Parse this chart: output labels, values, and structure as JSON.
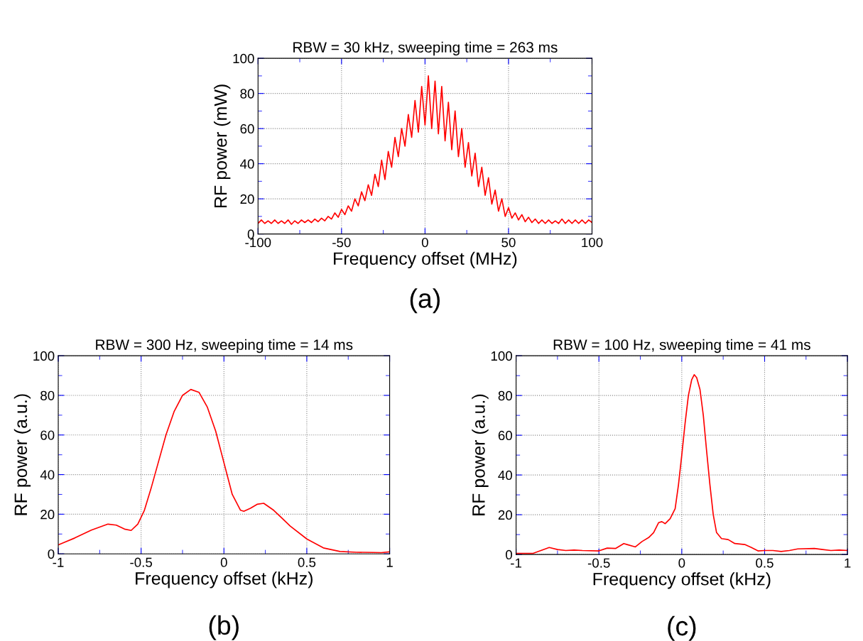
{
  "chart_data": [
    {
      "type": "line",
      "title": "RBW = 30 kHz, sweeping time = 263 ms",
      "xlabel": "Frequency offset (MHz)",
      "ylabel": "RF power (mW)",
      "annotations": [
        "(a)"
      ],
      "x": [
        -100,
        -98,
        -96,
        -94,
        -92,
        -90,
        -88,
        -86,
        -84,
        -82,
        -80,
        -78,
        -76,
        -74,
        -72,
        -70,
        -68,
        -66,
        -64,
        -62,
        -60,
        -58,
        -56,
        -54,
        -52,
        -50,
        -48,
        -46,
        -44,
        -42,
        -40,
        -38,
        -36,
        -34,
        -32,
        -30,
        -28,
        -26,
        -24,
        -22,
        -20,
        -18,
        -16,
        -14,
        -12,
        -10,
        -8,
        -6,
        -4,
        -2,
        0,
        2,
        4,
        6,
        8,
        10,
        12,
        14,
        16,
        18,
        20,
        22,
        24,
        26,
        28,
        30,
        32,
        34,
        36,
        38,
        40,
        42,
        44,
        46,
        48,
        50,
        52,
        54,
        56,
        58,
        60,
        62,
        64,
        66,
        68,
        70,
        72,
        74,
        76,
        78,
        80,
        82,
        84,
        86,
        88,
        90,
        92,
        94,
        96,
        98,
        100
      ],
      "series": [
        {
          "color": "#ff0000",
          "values": [
            6,
            8,
            6,
            7.5,
            6,
            8,
            6,
            7.5,
            6,
            8,
            5.5,
            7.5,
            6,
            8,
            6.5,
            8,
            6.5,
            8.5,
            7,
            9,
            7.5,
            10,
            8.5,
            12,
            9.5,
            14,
            11,
            16,
            13,
            20,
            16,
            24,
            19,
            28,
            22,
            34,
            27,
            42,
            31,
            47,
            38,
            55,
            44,
            60,
            50,
            68,
            55,
            76,
            58,
            84,
            62,
            90,
            60,
            87,
            57,
            84,
            53,
            75,
            48,
            70,
            44,
            60,
            38,
            52,
            33,
            46,
            27,
            38,
            22,
            32,
            17,
            25,
            13,
            20,
            10,
            15,
            9,
            12,
            8,
            11,
            7,
            9.5,
            6.5,
            8.5,
            6,
            8,
            6,
            8,
            6,
            7.5,
            6,
            8.5,
            6,
            8,
            6,
            8,
            6,
            8,
            6,
            8,
            6.5
          ]
        }
      ],
      "xlim": [
        -100,
        100
      ],
      "xticks": [
        -100,
        -50,
        0,
        50,
        100
      ],
      "ylim": [
        0,
        100
      ],
      "yticks": [
        0,
        20,
        40,
        60,
        80,
        100
      ],
      "grid": true,
      "line_style": "solid",
      "marker": "none"
    },
    {
      "type": "line",
      "title": "RBW = 300 Hz, sweeping time = 14 ms",
      "xlabel": "Frequency offset (kHz)",
      "ylabel": "RF power (a.u.)",
      "annotations": [
        "(b)"
      ],
      "x": [
        -1,
        -0.9,
        -0.8,
        -0.7,
        -0.65,
        -0.6,
        -0.56,
        -0.52,
        -0.48,
        -0.44,
        -0.4,
        -0.35,
        -0.3,
        -0.25,
        -0.2,
        -0.15,
        -0.1,
        -0.05,
        0,
        0.05,
        0.1,
        0.12,
        0.16,
        0.2,
        0.24,
        0.3,
        0.35,
        0.4,
        0.5,
        0.6,
        0.7,
        0.8,
        0.9,
        0.95,
        1
      ],
      "series": [
        {
          "color": "#ff0000",
          "values": [
            4.5,
            8,
            12,
            15,
            14.5,
            12.5,
            11.8,
            15,
            22,
            33,
            45,
            60,
            72,
            80,
            83,
            81.5,
            74,
            62,
            46,
            30,
            22,
            21.5,
            23,
            25,
            25.5,
            22,
            18,
            14,
            7.5,
            3,
            1.2,
            0.8,
            0.7,
            0.6,
            1
          ]
        }
      ],
      "xlim": [
        -1,
        1
      ],
      "xticks": [
        -1,
        -0.5,
        0,
        0.5,
        1
      ],
      "ylim": [
        0,
        100
      ],
      "yticks": [
        0,
        20,
        40,
        60,
        80,
        100
      ],
      "grid": true,
      "line_style": "solid",
      "marker": "none"
    },
    {
      "type": "line",
      "title": "RBW = 100 Hz, sweeping time = 41 ms",
      "xlabel": "Frequency offset (kHz)",
      "ylabel": "RF power (a.u.)",
      "annotations": [
        "(c)"
      ],
      "x": [
        -1,
        -0.9,
        -0.85,
        -0.8,
        -0.75,
        -0.7,
        -0.65,
        -0.6,
        -0.5,
        -0.45,
        -0.4,
        -0.35,
        -0.33,
        -0.28,
        -0.24,
        -0.2,
        -0.17,
        -0.14,
        -0.12,
        -0.1,
        -0.07,
        -0.04,
        -0.02,
        0,
        0.02,
        0.04,
        0.06,
        0.075,
        0.09,
        0.11,
        0.13,
        0.15,
        0.17,
        0.19,
        0.21,
        0.24,
        0.28,
        0.32,
        0.38,
        0.42,
        0.46,
        0.5,
        0.55,
        0.6,
        0.65,
        0.7,
        0.8,
        0.85,
        0.9,
        0.95,
        1
      ],
      "series": [
        {
          "color": "#ff0000",
          "values": [
            0.5,
            0.5,
            2,
            3.5,
            2.5,
            2,
            2.2,
            2,
            1.8,
            3.2,
            3,
            5.5,
            5,
            3.8,
            6.5,
            8.5,
            11,
            16,
            16.5,
            15.5,
            18,
            23,
            35,
            50,
            66,
            80,
            88,
            90.5,
            89,
            83,
            70,
            52,
            35,
            20,
            11,
            8,
            7.5,
            5.5,
            5,
            3.5,
            1.8,
            2,
            2,
            1.5,
            2,
            2.8,
            3,
            2.5,
            2,
            2.2,
            2
          ]
        }
      ],
      "xlim": [
        -1,
        1
      ],
      "xticks": [
        -1,
        -0.5,
        0,
        0.5,
        1
      ],
      "ylim": [
        0,
        100
      ],
      "yticks": [
        0,
        20,
        40,
        60,
        80,
        100
      ],
      "grid": true,
      "line_style": "solid",
      "marker": "none"
    }
  ]
}
